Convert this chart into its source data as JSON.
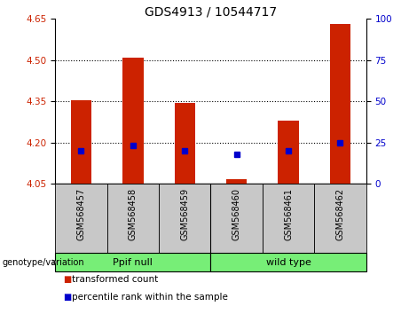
{
  "title": "GDS4913 / 10544717",
  "samples": [
    "GSM568457",
    "GSM568458",
    "GSM568459",
    "GSM568460",
    "GSM568461",
    "GSM568462"
  ],
  "transformed_count": [
    4.355,
    4.51,
    4.345,
    4.065,
    4.28,
    4.63
  ],
  "percentile_rank": [
    20,
    23,
    20,
    18,
    20,
    25
  ],
  "ylim_left": [
    4.05,
    4.65
  ],
  "yticks_left": [
    4.05,
    4.2,
    4.35,
    4.5,
    4.65
  ],
  "ylim_right": [
    0,
    100
  ],
  "yticks_right": [
    0,
    25,
    50,
    75,
    100
  ],
  "bar_base": 4.05,
  "bar_color": "#cc2200",
  "percentile_color": "#0000cc",
  "grid_lines": [
    4.2,
    4.35,
    4.5
  ],
  "groups": [
    {
      "label": "Ppif null",
      "start": 0,
      "end": 3
    },
    {
      "label": "wild type",
      "start": 3,
      "end": 6
    }
  ],
  "sample_row_color": "#c8c8c8",
  "group_row_color": "#77ee77",
  "legend_items": [
    {
      "label": "transformed count",
      "color": "#cc2200"
    },
    {
      "label": "percentile rank within the sample",
      "color": "#0000cc"
    }
  ],
  "genotype_label": "genotype/variation",
  "title_fontsize": 10,
  "tick_fontsize": 7.5,
  "sample_fontsize": 7,
  "group_fontsize": 8,
  "legend_fontsize": 7.5
}
